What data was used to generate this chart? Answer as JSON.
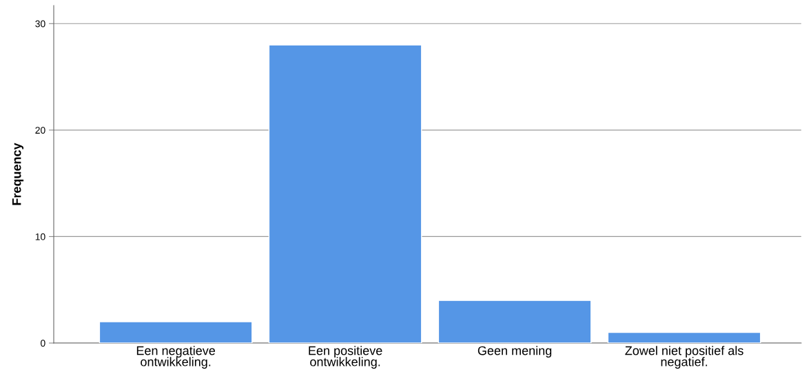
{
  "chart_data": {
    "type": "bar",
    "ylabel": "Frequency",
    "categories": [
      "Een negatieve\nontwikkeling.",
      "Een positieve\nontwikkeling.",
      "Geen mening",
      "Zowel niet positief als\nnegatief."
    ],
    "values": [
      2,
      28,
      4,
      1
    ],
    "color": "#5596e6",
    "ylim": [
      0,
      31.7
    ],
    "yticks": [
      0,
      10,
      20,
      30
    ],
    "grid": "y"
  }
}
